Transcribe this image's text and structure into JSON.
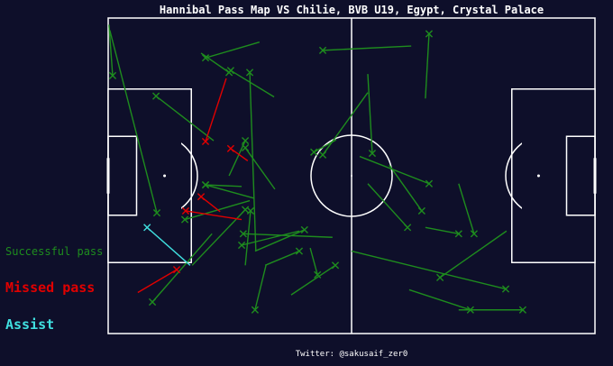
{
  "chart_data": {
    "type": "scatter",
    "title": "Hannibal Pass Map VS Chilie, BVB U19, Egypt, Crystal Palace",
    "credit": "Twitter: @sakusaif_zer0",
    "pitch": {
      "length": 120,
      "width": 80,
      "x_range": [
        0,
        120
      ],
      "y_range": [
        0,
        80
      ],
      "line_color": "#ffffff",
      "background": "#0e0f2a"
    },
    "legend": [
      {
        "label": "Successful pass",
        "color": "#1e8c1e"
      },
      {
        "label": "Missed pass",
        "color": "#e00000"
      },
      {
        "label": "Assist",
        "color": "#40e0e0"
      }
    ],
    "legend_position": "left",
    "series": [
      {
        "name": "Successful pass",
        "color": "#1e8c1e",
        "passes": [
          [
            1.1,
            65.4,
            0.2,
            78.3
          ],
          [
            12.0,
            30.6,
            0.4,
            76.9
          ],
          [
            24.0,
            69.9,
            37.3,
            73.9
          ],
          [
            29.8,
            66.2,
            22.9,
            71.1
          ],
          [
            30.2,
            66.7,
            40.9,
            60.0
          ],
          [
            11.8,
            60.2,
            26.0,
            48.9
          ],
          [
            33.8,
            48.9,
            29.8,
            40.0
          ],
          [
            33.8,
            47.1,
            41.1,
            36.6
          ],
          [
            24.0,
            37.7,
            32.9,
            37.3
          ],
          [
            24.0,
            37.7,
            36.0,
            34.3
          ],
          [
            18.9,
            28.9,
            34.9,
            33.7
          ],
          [
            35.1,
            31.1,
            33.8,
            17.3
          ],
          [
            10.9,
            8.0,
            25.6,
            25.3
          ],
          [
            33.8,
            31.4,
            20.7,
            17.3
          ],
          [
            32.9,
            22.4,
            47.1,
            26.0
          ],
          [
            48.4,
            26.3,
            36.2,
            20.9
          ],
          [
            33.3,
            25.3,
            55.3,
            24.4
          ],
          [
            47.1,
            20.9,
            38.7,
            17.3
          ],
          [
            36.2,
            6.0,
            38.9,
            17.3
          ],
          [
            34.9,
            66.2,
            36.4,
            21.1
          ],
          [
            56.0,
            17.3,
            45.1,
            9.8
          ],
          [
            51.6,
            14.9,
            49.8,
            21.7
          ],
          [
            52.9,
            71.8,
            74.7,
            72.9
          ],
          [
            50.7,
            46.0,
            56.2,
            49.1
          ],
          [
            52.9,
            45.3,
            64.0,
            61.1
          ],
          [
            65.1,
            45.7,
            64.0,
            65.8
          ],
          [
            79.1,
            76.0,
            78.2,
            59.6
          ],
          [
            79.1,
            38.0,
            62.0,
            44.9
          ],
          [
            73.8,
            26.9,
            64.0,
            38.0
          ],
          [
            77.3,
            31.1,
            69.3,
            42.7
          ],
          [
            86.4,
            25.3,
            78.2,
            26.9
          ],
          [
            90.2,
            25.3,
            86.4,
            38.0
          ],
          [
            81.8,
            14.2,
            98.2,
            26.0
          ],
          [
            98.0,
            11.3,
            60.0,
            20.9
          ],
          [
            89.3,
            6.0,
            74.2,
            11.1
          ],
          [
            102.2,
            6.0,
            86.4,
            6.0
          ]
        ]
      },
      {
        "name": "Missed pass",
        "color": "#e00000",
        "passes": [
          [
            24.0,
            48.7,
            29.1,
            64.7
          ],
          [
            30.2,
            46.9,
            34.4,
            43.8
          ],
          [
            22.9,
            34.7,
            27.6,
            30.9
          ],
          [
            19.1,
            31.1,
            32.9,
            28.9
          ],
          [
            16.9,
            16.2,
            7.3,
            10.4
          ]
        ]
      },
      {
        "name": "Assist",
        "color": "#40e0e0",
        "passes": [
          [
            9.6,
            26.9,
            20.2,
            17.3
          ]
        ]
      }
    ]
  }
}
